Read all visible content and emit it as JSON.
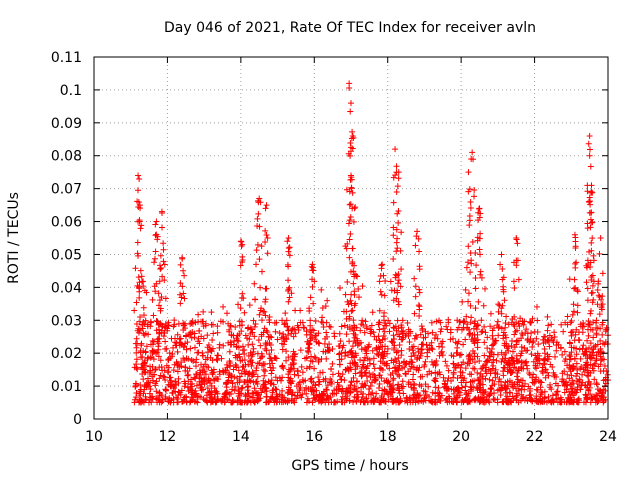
{
  "chart_data": {
    "type": "scatter",
    "title": "Day 046 of 2021, Rate Of TEC Index for receiver avln",
    "xlabel": "GPS time / hours",
    "ylabel": "ROTI / TECUs",
    "xlim": [
      10,
      24
    ],
    "ylim": [
      0,
      0.11
    ],
    "xticks": [
      "10",
      "12",
      "14",
      "16",
      "18",
      "20",
      "22",
      "24"
    ],
    "yticks": [
      "0",
      "0.01",
      "0.02",
      "0.03",
      "0.04",
      "0.05",
      "0.06",
      "0.07",
      "0.08",
      "0.09",
      "0.1",
      "0.11"
    ],
    "grid": true,
    "marker": "plus",
    "series_color": "#ff0000",
    "data_start_hour": 11.1,
    "data_end_hour": 24.0,
    "baseline_range": [
      0.005,
      0.03
    ],
    "peaks": [
      {
        "x": 11.2,
        "y": 0.074
      },
      {
        "x": 11.25,
        "y": 0.065
      },
      {
        "x": 11.7,
        "y": 0.06
      },
      {
        "x": 11.85,
        "y": 0.063
      },
      {
        "x": 12.4,
        "y": 0.049
      },
      {
        "x": 14.0,
        "y": 0.054
      },
      {
        "x": 14.5,
        "y": 0.067
      },
      {
        "x": 14.7,
        "y": 0.065
      },
      {
        "x": 15.3,
        "y": 0.055
      },
      {
        "x": 15.95,
        "y": 0.047
      },
      {
        "x": 16.95,
        "y": 0.102
      },
      {
        "x": 17.0,
        "y": 0.096
      },
      {
        "x": 17.05,
        "y": 0.086
      },
      {
        "x": 17.0,
        "y": 0.074
      },
      {
        "x": 17.85,
        "y": 0.047
      },
      {
        "x": 18.2,
        "y": 0.082
      },
      {
        "x": 18.3,
        "y": 0.075
      },
      {
        "x": 18.8,
        "y": 0.057
      },
      {
        "x": 20.2,
        "y": 0.075
      },
      {
        "x": 20.3,
        "y": 0.081
      },
      {
        "x": 20.5,
        "y": 0.064
      },
      {
        "x": 21.1,
        "y": 0.05
      },
      {
        "x": 21.5,
        "y": 0.055
      },
      {
        "x": 23.1,
        "y": 0.056
      },
      {
        "x": 23.5,
        "y": 0.086
      },
      {
        "x": 23.5,
        "y": 0.08
      },
      {
        "x": 23.55,
        "y": 0.069
      },
      {
        "x": 23.8,
        "y": 0.055
      }
    ]
  }
}
